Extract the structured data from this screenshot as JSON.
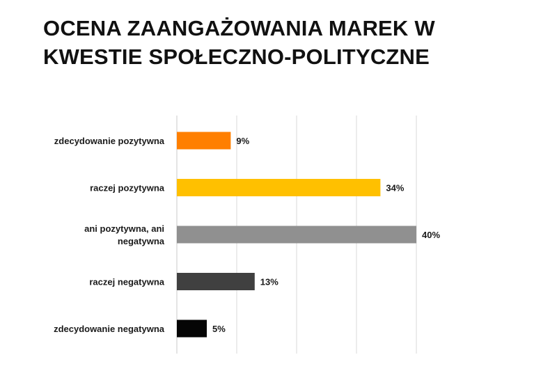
{
  "title_lines": [
    "OCENA ZAANGAŻOWANIA MAREK W",
    "KWESTIE SPOŁECZNO-POLITYCZNE"
  ],
  "chart_data": {
    "type": "bar",
    "orientation": "horizontal",
    "title": "OCENA ZAANGAŻOWANIA MAREK W KWESTIE SPOŁECZNO-POLITYCZNE",
    "categories": [
      [
        "zdecydowanie pozytywna"
      ],
      [
        "raczej pozytywna"
      ],
      [
        "ani pozytywna, ani",
        "negatywna"
      ],
      [
        "raczej negatywna"
      ],
      [
        "zdecydowanie negatywna"
      ]
    ],
    "values": [
      9,
      34,
      40,
      13,
      5
    ],
    "value_labels": [
      "9%",
      "34%",
      "40%",
      "13%",
      "5%"
    ],
    "colors": [
      "#ff7f00",
      "#ffc000",
      "#909090",
      "#404040",
      "#050505"
    ],
    "xlim": [
      0,
      40
    ],
    "gridlines": [
      0,
      10,
      20,
      30,
      40
    ],
    "grid": true,
    "legend": "none"
  }
}
